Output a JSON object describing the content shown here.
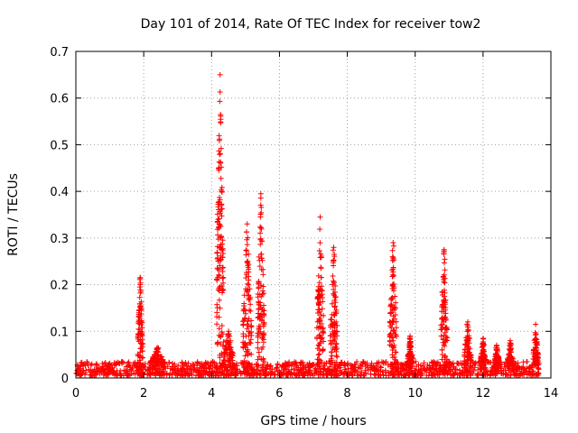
{
  "chart_data": {
    "type": "scatter",
    "title": "Day 101 of 2014, Rate Of TEC Index for receiver tow2",
    "xlabel": "GPS time / hours",
    "ylabel": "ROTI / TECUs",
    "xlim": [
      0,
      14
    ],
    "ylim": [
      0,
      0.7
    ],
    "xticks": [
      0,
      2,
      4,
      6,
      8,
      10,
      12,
      14
    ],
    "yticks": [
      0,
      0.1,
      0.2,
      0.3,
      0.4,
      0.5,
      0.6,
      0.7
    ],
    "grid": true,
    "marker": "+",
    "color": "#ff0000",
    "baseline": {
      "x_range": [
        0,
        13.65
      ],
      "y_range": [
        0.005,
        0.035
      ]
    },
    "bursts": [
      {
        "x": 1.9,
        "peak": 0.215,
        "width": 0.15
      },
      {
        "x": 2.4,
        "peak": 0.065,
        "width": 0.4
      },
      {
        "x": 4.25,
        "peak": 0.65,
        "width": 0.2
      },
      {
        "x": 4.5,
        "peak": 0.1,
        "width": 0.3
      },
      {
        "x": 5.05,
        "peak": 0.33,
        "width": 0.25
      },
      {
        "x": 5.45,
        "peak": 0.395,
        "width": 0.2
      },
      {
        "x": 7.2,
        "peak": 0.345,
        "width": 0.2
      },
      {
        "x": 7.6,
        "peak": 0.28,
        "width": 0.2
      },
      {
        "x": 9.35,
        "peak": 0.29,
        "width": 0.2
      },
      {
        "x": 9.85,
        "peak": 0.09,
        "width": 0.15
      },
      {
        "x": 10.85,
        "peak": 0.275,
        "width": 0.2
      },
      {
        "x": 11.55,
        "peak": 0.12,
        "width": 0.2
      },
      {
        "x": 12.0,
        "peak": 0.085,
        "width": 0.15
      },
      {
        "x": 12.4,
        "peak": 0.07,
        "width": 0.15
      },
      {
        "x": 12.8,
        "peak": 0.08,
        "width": 0.15
      },
      {
        "x": 13.55,
        "peak": 0.115,
        "width": 0.15
      }
    ]
  }
}
